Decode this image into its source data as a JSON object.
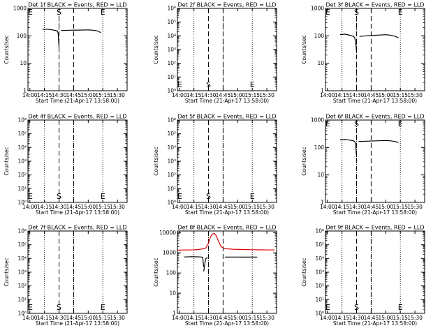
{
  "figure": {
    "background": "#ffffff",
    "axis_color": "#000000",
    "events_color": "#000000",
    "lld_color": "#dd0000"
  },
  "chart_data": [
    {
      "id": "1f",
      "type": "line",
      "title": "Det 1f BLACK = Events, RED = LLD",
      "xlabel": "Start Time (21-Apr-17 13:58:00)",
      "ylabel": "Counts/sec",
      "xlim": [
        "13:58",
        "15:40"
      ],
      "x_ticks": [
        "14:00",
        "14:15",
        "14:30",
        "14:45",
        "15:00",
        "15:15",
        "15:30"
      ],
      "yscale": "log",
      "ylim": [
        1,
        1000
      ],
      "y_tick_labels": [
        "1",
        "10",
        "100",
        "1000"
      ],
      "vlines_dotted": [
        "14:15",
        "14:30",
        "15:15"
      ],
      "vlines_dashed": [
        "14:30",
        "14:45"
      ],
      "markers": [
        {
          "text": "E",
          "x": "13:58",
          "y": 1000
        },
        {
          "text": "S",
          "x": "14:30",
          "y": 1000
        },
        {
          "text": "E",
          "x": "15:15",
          "y": 1000
        }
      ],
      "series": [
        {
          "color": "#000000",
          "x": [
            "14:13",
            "14:18",
            "14:23",
            "14:27",
            "14:28",
            "14:29",
            "14:30"
          ],
          "y": [
            170,
            175,
            165,
            155,
            150,
            130,
            40
          ]
        },
        {
          "color": "#000000",
          "x": [
            "14:32",
            "14:40",
            "14:50",
            "15:00",
            "15:05",
            "15:10",
            "15:13"
          ],
          "y": [
            155,
            160,
            162,
            165,
            160,
            150,
            130
          ]
        }
      ]
    },
    {
      "id": "2f",
      "type": "line",
      "title": "Det 2f BLACK = Events, RED = LLD",
      "xlabel": "Start Time (21-Apr-17 13:58:00)",
      "ylabel": "Counts/sec",
      "xlim": [
        "13:58",
        "15:40"
      ],
      "x_ticks": [
        "14:00",
        "14:15",
        "14:30",
        "14:45",
        "15:00",
        "15:15",
        "15:30"
      ],
      "yscale": "log",
      "ylim": [
        1,
        1000000
      ],
      "y_tick_labels": [
        "10⁰",
        "10¹",
        "10²",
        "10³",
        "10⁴",
        "10⁵",
        "10⁶"
      ],
      "vlines_dotted": [
        "14:15",
        "14:45",
        "15:15"
      ],
      "vlines_dashed": [
        "14:30",
        "14:45"
      ],
      "markers": [
        {
          "text": "E",
          "x": "13:58",
          "y": 2
        },
        {
          "text": "S",
          "x": "14:30",
          "y": 2
        },
        {
          "text": "E",
          "x": "15:15",
          "y": 2
        }
      ],
      "series": []
    },
    {
      "id": "3f",
      "type": "line",
      "title": "Det 3f BLACK = Events, RED = LLD",
      "xlabel": "Start Time (21-Apr-17 13:58:00)",
      "ylabel": "Counts/sec",
      "xlim": [
        "13:58",
        "15:40"
      ],
      "x_ticks": [
        "14:00",
        "14:15",
        "14:30",
        "14:45",
        "15:00",
        "15:15",
        "15:30"
      ],
      "yscale": "log",
      "ylim": [
        1,
        1000
      ],
      "y_tick_labels": [
        "1",
        "10",
        "100",
        "1000"
      ],
      "vlines_dotted": [
        "14:15",
        "14:30",
        "15:15"
      ],
      "vlines_dashed": [
        "14:30",
        "14:45"
      ],
      "markers": [
        {
          "text": "E",
          "x": "13:58",
          "y": 1000
        },
        {
          "text": "S",
          "x": "14:30",
          "y": 1000
        },
        {
          "text": "E",
          "x": "15:15",
          "y": 1000
        }
      ],
      "series": [
        {
          "color": "#000000",
          "x": [
            "14:13",
            "14:18",
            "14:23",
            "14:27",
            "14:28",
            "14:29",
            "14:30"
          ],
          "y": [
            110,
            115,
            105,
            95,
            85,
            60,
            25
          ]
        },
        {
          "color": "#000000",
          "x": [
            "14:33",
            "14:40",
            "14:50",
            "15:00",
            "15:05",
            "15:10",
            "15:13"
          ],
          "y": [
            95,
            100,
            105,
            110,
            105,
            95,
            85
          ]
        }
      ]
    },
    {
      "id": "4f",
      "type": "line",
      "title": "Det 4f BLACK = Events, RED = LLD",
      "xlabel": "Start Time (21-Apr-17 13:58:00)",
      "ylabel": "Counts/sec",
      "xlim": [
        "13:58",
        "15:40"
      ],
      "x_ticks": [
        "14:00",
        "14:15",
        "14:30",
        "14:45",
        "15:00",
        "15:15",
        "15:30"
      ],
      "yscale": "log",
      "ylim": [
        1,
        1000000
      ],
      "y_tick_labels": [
        "10⁰",
        "10¹",
        "10²",
        "10³",
        "10⁴",
        "10⁵",
        "10⁶"
      ],
      "vlines_dotted": [
        "14:15",
        "14:45",
        "15:15"
      ],
      "vlines_dashed": [
        "14:30",
        "14:45"
      ],
      "markers": [
        {
          "text": "E",
          "x": "13:58",
          "y": 2
        },
        {
          "text": "S",
          "x": "14:30",
          "y": 2
        },
        {
          "text": "E",
          "x": "15:15",
          "y": 2
        }
      ],
      "series": []
    },
    {
      "id": "5f",
      "type": "line",
      "title": "Det 5f BLACK = Events, RED = LLD",
      "xlabel": "Start Time (21-Apr-17 13:58:00)",
      "ylabel": "Counts/sec",
      "xlim": [
        "13:58",
        "15:40"
      ],
      "x_ticks": [
        "14:00",
        "14:15",
        "14:30",
        "14:45",
        "15:00",
        "15:15",
        "15:30"
      ],
      "yscale": "log",
      "ylim": [
        1,
        1000000
      ],
      "y_tick_labels": [
        "10⁰",
        "10¹",
        "10²",
        "10³",
        "10⁴",
        "10⁵",
        "10⁶"
      ],
      "vlines_dotted": [
        "14:15",
        "14:45",
        "15:15"
      ],
      "vlines_dashed": [
        "14:30",
        "14:45"
      ],
      "markers": [
        {
          "text": "E",
          "x": "13:58",
          "y": 2
        },
        {
          "text": "S",
          "x": "14:30",
          "y": 2
        },
        {
          "text": "E",
          "x": "15:15",
          "y": 2
        }
      ],
      "series": []
    },
    {
      "id": "6f",
      "type": "line",
      "title": "Det 6f BLACK = Events, RED = LLD",
      "xlabel": "Start Time (21-Apr-17 13:58:00)",
      "ylabel": "Counts/sec",
      "xlim": [
        "13:58",
        "15:40"
      ],
      "x_ticks": [
        "14:00",
        "14:15",
        "14:30",
        "14:45",
        "15:00",
        "15:15",
        "15:30"
      ],
      "yscale": "log",
      "ylim": [
        1,
        1000
      ],
      "y_tick_labels": [
        "1",
        "10",
        "100",
        "1000"
      ],
      "vlines_dotted": [
        "14:15",
        "14:30",
        "15:15"
      ],
      "vlines_dashed": [
        "14:30",
        "14:45"
      ],
      "markers": [
        {
          "text": "E",
          "x": "13:58",
          "y": 1000
        },
        {
          "text": "S",
          "x": "14:30",
          "y": 1000
        },
        {
          "text": "E",
          "x": "15:15",
          "y": 1000
        }
      ],
      "series": [
        {
          "color": "#000000",
          "x": [
            "14:13",
            "14:18",
            "14:23",
            "14:27",
            "14:28",
            "14:29",
            "14:30"
          ],
          "y": [
            190,
            195,
            185,
            175,
            165,
            140,
            45
          ]
        },
        {
          "color": "#000000",
          "x": [
            "14:32",
            "14:40",
            "14:50",
            "15:00",
            "15:05",
            "15:10",
            "15:13"
          ],
          "y": [
            165,
            170,
            175,
            180,
            175,
            165,
            150
          ]
        }
      ]
    },
    {
      "id": "7f",
      "type": "line",
      "title": "Det 7f BLACK = Events, RED = LLD",
      "xlabel": "Start Time (21-Apr-17 13:58:00)",
      "ylabel": "Counts/sec",
      "xlim": [
        "13:58",
        "15:40"
      ],
      "x_ticks": [
        "14:00",
        "14:15",
        "14:30",
        "14:45",
        "15:00",
        "15:15",
        "15:30"
      ],
      "yscale": "log",
      "ylim": [
        1,
        1000000
      ],
      "y_tick_labels": [
        "10⁰",
        "10¹",
        "10²",
        "10³",
        "10⁴",
        "10⁵",
        "10⁶"
      ],
      "vlines_dotted": [
        "14:15",
        "14:45",
        "15:15"
      ],
      "vlines_dashed": [
        "14:30",
        "14:45"
      ],
      "markers": [
        {
          "text": "E",
          "x": "13:58",
          "y": 2
        },
        {
          "text": "S",
          "x": "14:30",
          "y": 2
        },
        {
          "text": "E",
          "x": "15:15",
          "y": 2
        }
      ],
      "series": []
    },
    {
      "id": "8f",
      "type": "line",
      "title": "Det 8f BLACK = Events, RED = LLD",
      "xlabel": "Start Time (21-Apr-17 13:58:00)",
      "ylabel": "Counts/sec",
      "xlim": [
        "13:58",
        "15:40"
      ],
      "x_ticks": [
        "14:00",
        "14:15",
        "14:30",
        "14:45",
        "15:00",
        "15:15",
        "15:30"
      ],
      "yscale": "log",
      "ylim": [
        1,
        12000
      ],
      "y_tick_labels": [
        "1",
        "10",
        "100",
        "1000",
        "10000"
      ],
      "vlines_dotted": [
        "14:15",
        "14:30",
        "15:15"
      ],
      "vlines_dashed": [
        "14:30",
        "14:45"
      ],
      "markers": [],
      "series": [
        {
          "color": "#dd0000",
          "x": [
            "13:58",
            "14:05",
            "14:15",
            "14:22",
            "14:27",
            "14:30",
            "14:32",
            "14:34",
            "14:36",
            "14:38",
            "14:40",
            "14:43",
            "14:47",
            "14:55",
            "15:05",
            "15:15",
            "15:25",
            "15:38"
          ],
          "y": [
            1350,
            1380,
            1400,
            1500,
            1700,
            3000,
            6000,
            8500,
            9000,
            7000,
            4000,
            2000,
            1600,
            1500,
            1450,
            1420,
            1400,
            1380
          ]
        },
        {
          "color": "#000000",
          "x": [
            "14:05",
            "14:12",
            "14:18",
            "14:22",
            "14:24",
            "14:25"
          ],
          "y": [
            620,
            640,
            630,
            620,
            600,
            200
          ]
        },
        {
          "color": "#000000",
          "x": [
            "14:25",
            "14:27",
            "14:29"
          ],
          "y": [
            120,
            500,
            600
          ]
        },
        {
          "color": "#000000",
          "x": [
            "14:47",
            "14:55",
            "15:05",
            "15:15",
            "15:20"
          ],
          "y": [
            610,
            615,
            610,
            612,
            610
          ]
        }
      ]
    },
    {
      "id": "9f",
      "type": "line",
      "title": "Det 9f BLACK = Events, RED = LLD",
      "xlabel": "Start Time (21-Apr-17 13:58:00)",
      "ylabel": "Counts/sec",
      "xlim": [
        "13:58",
        "15:40"
      ],
      "x_ticks": [
        "14:00",
        "14:15",
        "14:30",
        "14:45",
        "15:00",
        "15:15",
        "15:30"
      ],
      "yscale": "log",
      "ylim": [
        1,
        1000000
      ],
      "y_tick_labels": [
        "10⁰",
        "10¹",
        "10²",
        "10³",
        "10⁴",
        "10⁵",
        "10⁶"
      ],
      "vlines_dotted": [
        "14:15",
        "14:45",
        "15:15"
      ],
      "vlines_dashed": [
        "14:30",
        "14:45"
      ],
      "markers": [
        {
          "text": "E",
          "x": "13:58",
          "y": 2
        },
        {
          "text": "S",
          "x": "14:30",
          "y": 2
        },
        {
          "text": "E",
          "x": "15:15",
          "y": 2
        }
      ],
      "series": []
    }
  ]
}
